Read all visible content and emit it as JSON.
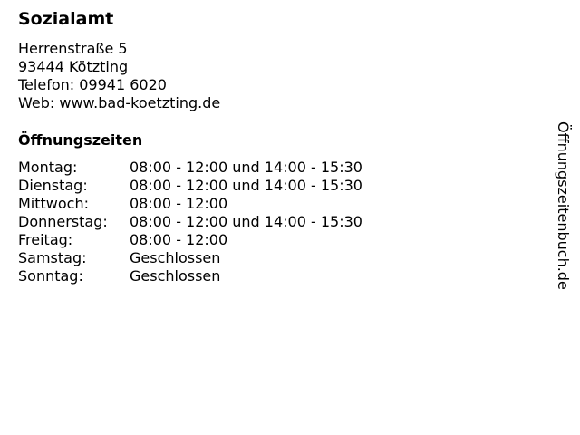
{
  "title": "Sozialamt",
  "address": {
    "street": "Herrenstraße 5",
    "city": "93444 Kötzting",
    "phone": "Telefon: 09941 6020",
    "web": "Web: www.bad-koetzting.de"
  },
  "hours_title": "Öffnungszeiten",
  "hours": [
    {
      "day": "Montag:",
      "time": "08:00 - 12:00 und 14:00 - 15:30"
    },
    {
      "day": "Dienstag:",
      "time": "08:00 - 12:00 und 14:00 - 15:30"
    },
    {
      "day": "Mittwoch:",
      "time": "08:00 - 12:00"
    },
    {
      "day": "Donnerstag:",
      "time": "08:00 - 12:00 und 14:00 - 15:30"
    },
    {
      "day": "Freitag:",
      "time": "08:00 - 12:00"
    },
    {
      "day": "Samstag:",
      "time": "Geschlossen"
    },
    {
      "day": "Sonntag:",
      "time": "Geschlossen"
    }
  ],
  "watermark": "Öffnungszeitenbuch.de"
}
